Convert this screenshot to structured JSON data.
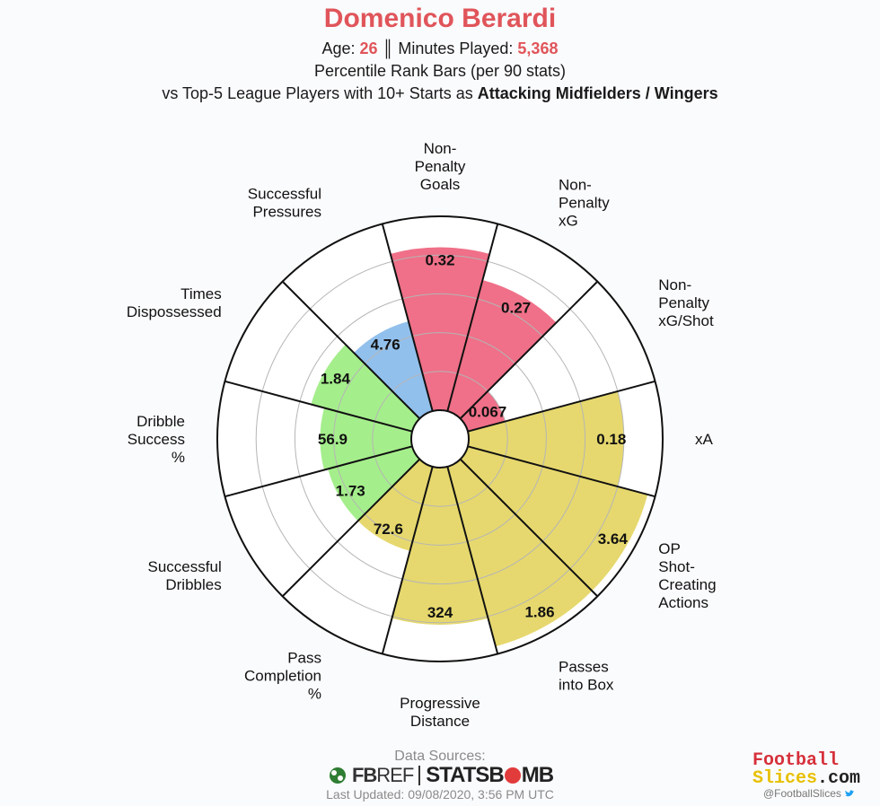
{
  "header": {
    "player_name": "Domenico Berardi",
    "age_label": "Age: ",
    "age_value": "26",
    "separator": " ║ ",
    "minutes_label": "Minutes Played: ",
    "minutes_value": "5,368",
    "line2": "Percentile Rank Bars (per 90 stats)",
    "line3_prefix": "vs Top-5 League Players with 10+ Starts as ",
    "line3_bold": "Attacking Midfielders / Wingers"
  },
  "chart_data": {
    "type": "polar-bar",
    "title": "Domenico Berardi",
    "scale": "percentile",
    "rlim": [
      0,
      100
    ],
    "grid": true,
    "categories": [
      {
        "label": [
          "Non-",
          "Penalty",
          "Goals"
        ],
        "value_label": "0.32",
        "percentile": 84,
        "group": "attacking"
      },
      {
        "label": [
          "Non-",
          "Penalty",
          "xG"
        ],
        "value_label": "0.27",
        "percentile": 70,
        "group": "attacking"
      },
      {
        "label": [
          "Non-",
          "Penalty",
          "xG/Shot"
        ],
        "value_label": "0.067",
        "percentile": 20,
        "group": "attacking"
      },
      {
        "label": [
          "xA"
        ],
        "value_label": "0.18",
        "percentile": 80,
        "group": "possession"
      },
      {
        "label": [
          "OP",
          "Shot-",
          "Creating",
          "Actions"
        ],
        "value_label": "3.64",
        "percentile": 96,
        "group": "possession"
      },
      {
        "label": [
          "Passes",
          "into Box"
        ],
        "value_label": "1.86",
        "percentile": 96,
        "group": "possession"
      },
      {
        "label": [
          "Progressive",
          "Distance"
        ],
        "value_label": "324",
        "percentile": 81,
        "group": "possession"
      },
      {
        "label": [
          "Pass",
          "Completion",
          "%"
        ],
        "value_label": "72.6",
        "percentile": 45,
        "group": "possession"
      },
      {
        "label": [
          "Successful",
          "Dribbles"
        ],
        "value_label": "1.73",
        "percentile": 45,
        "group": "dribbling"
      },
      {
        "label": [
          "Dribble",
          "Success",
          "%"
        ],
        "value_label": "56.9",
        "percentile": 47,
        "group": "dribbling"
      },
      {
        "label": [
          "Times",
          "Dispossessed"
        ],
        "value_label": "1.84",
        "percentile": 54,
        "group": "dribbling"
      },
      {
        "label": [
          "Successful",
          "Pressures"
        ],
        "value_label": "4.76",
        "percentile": 48,
        "group": "defending"
      }
    ],
    "colors": {
      "attacking": "#ef7088",
      "possession": "#e6d86e",
      "dribbling": "#a5ee8c",
      "defending": "#92c0ec"
    }
  },
  "footer": {
    "sources_label": "Data Sources:",
    "fbref_a": "FB",
    "fbref_b": "REF",
    "statsbomb_a": "STATS",
    "statsbomb_b": "B",
    "statsbomb_c": "MB",
    "updated": "Last Updated: 09/08/2020, 3:56 PM UTC",
    "brand_line1": "Football",
    "brand_line2": "Slices",
    "brand_suffix": ".com",
    "handle": "@FootballSlices"
  }
}
